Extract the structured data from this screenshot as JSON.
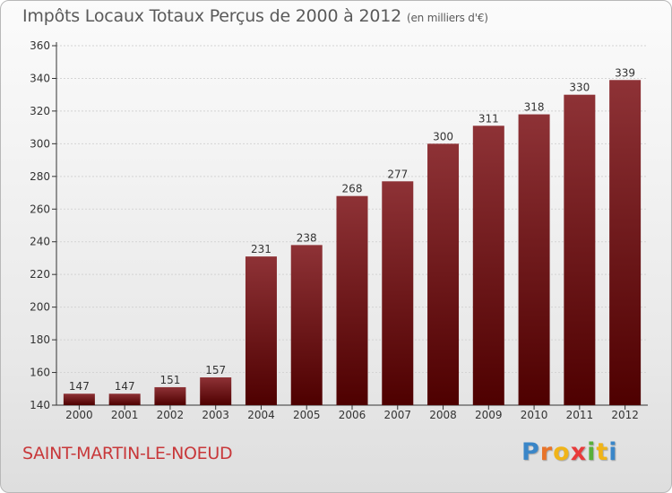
{
  "header": {
    "title": "Impôts Locaux Totaux Perçus de 2000 à 2012",
    "unit": "(en milliers d'€)"
  },
  "footer": {
    "commune": "SAINT-MARTIN-LE-NOEUD",
    "logo_letters": [
      "P",
      "r",
      "o",
      "x",
      "i",
      "t",
      "i"
    ],
    "logo_colors": [
      "#3a86c8",
      "#e8742a",
      "#f0b418",
      "#e83a3a",
      "#58b03a",
      "#f0b418",
      "#3a86c8"
    ]
  },
  "colors": {
    "bar_top": "#8e3236",
    "bar_bottom": "#4e0000",
    "axis": "#333333",
    "grid": "#d4d4d4",
    "label": "#333333",
    "commune": "#c8383a"
  },
  "chart_data": {
    "type": "bar",
    "title": "Impôts Locaux Totaux Perçus de 2000 à 2012",
    "xlabel": "",
    "ylabel": "",
    "categories": [
      "2000",
      "2001",
      "2002",
      "2003",
      "2004",
      "2005",
      "2006",
      "2007",
      "2008",
      "2009",
      "2010",
      "2011",
      "2012"
    ],
    "values": [
      147,
      147,
      151,
      157,
      231,
      238,
      268,
      277,
      300,
      311,
      318,
      330,
      339
    ],
    "ylim": [
      140,
      360
    ],
    "yticks": [
      140,
      160,
      180,
      200,
      220,
      240,
      260,
      280,
      300,
      320,
      340,
      360
    ],
    "grid": true
  }
}
